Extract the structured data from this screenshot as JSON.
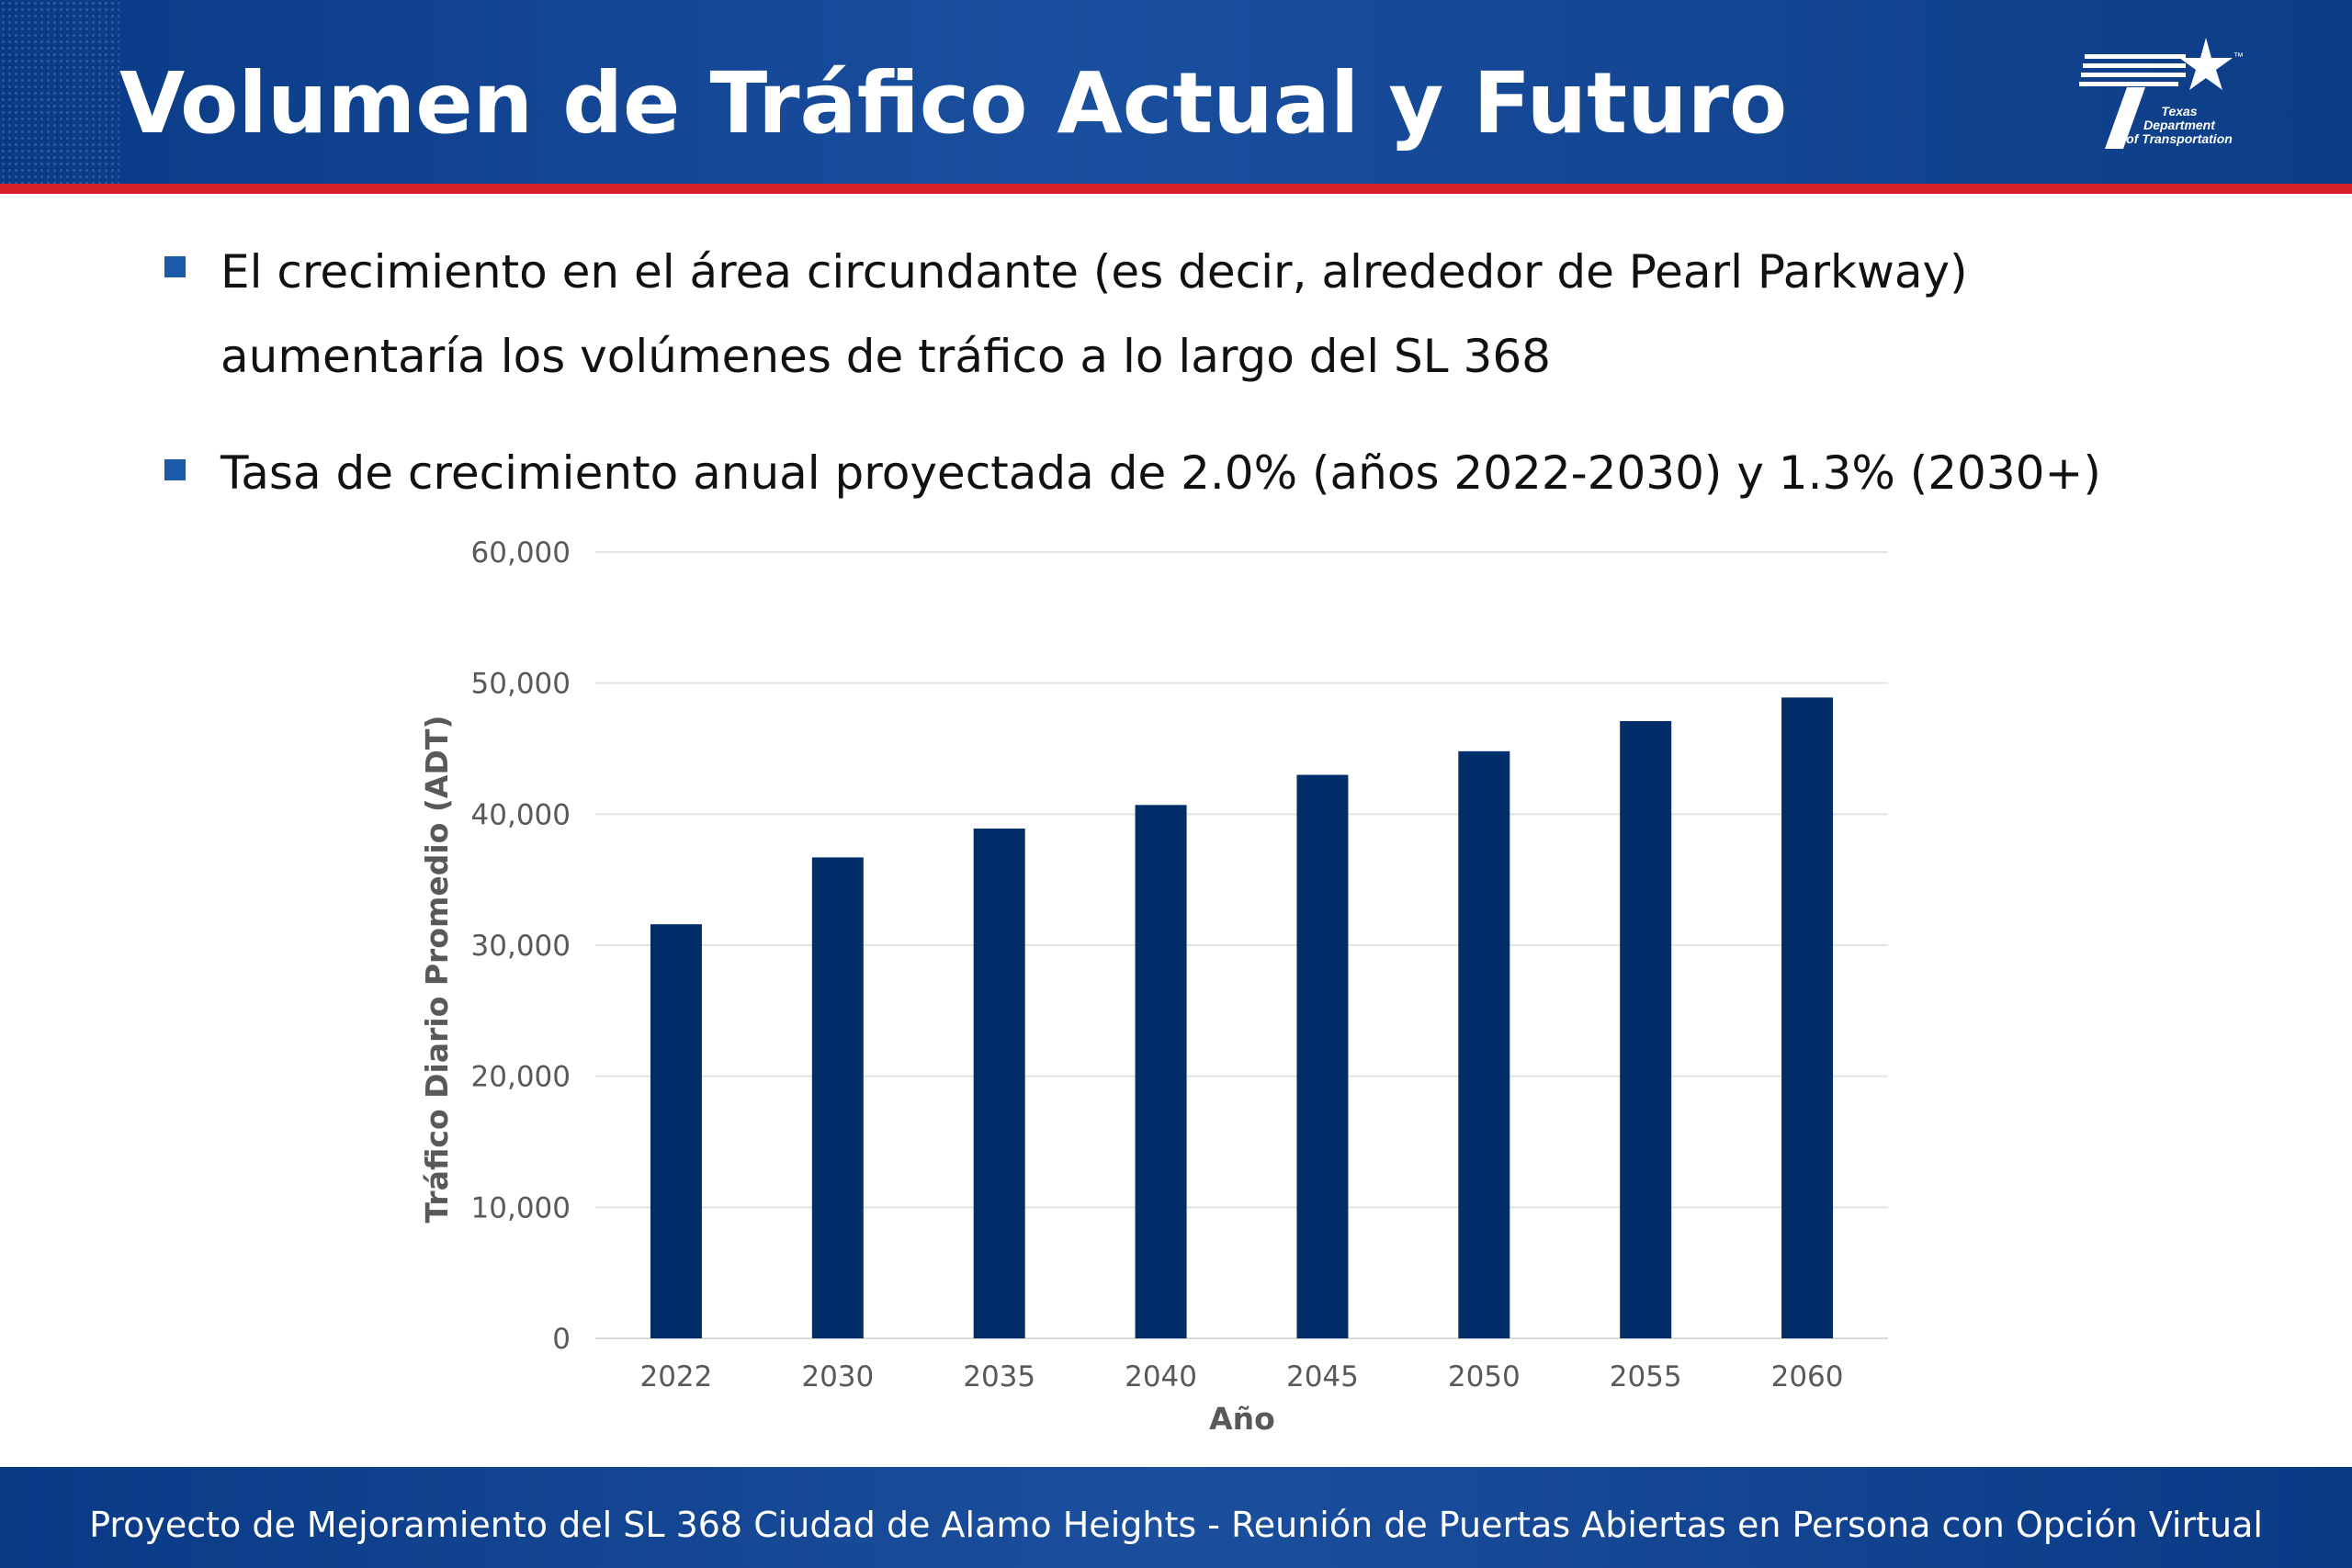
{
  "header": {
    "title": "Volumen de Tráfico Actual y Futuro",
    "logo_text": [
      "Texas",
      "Department",
      "of Transportation"
    ],
    "logo_tm": "™"
  },
  "bullets": [
    {
      "lines": [
        "El crecimiento en el área circundante (es decir, alrededor de Pearl Parkway)",
        "aumentaría los volúmenes de tráfico a lo largo del SL 368"
      ]
    },
    {
      "lines": [
        "Tasa de crecimiento anual proyectada de 2.0% (años 2022-2030) y 1.3% (2030+)"
      ]
    }
  ],
  "chart_data": {
    "type": "bar",
    "categories": [
      "2022",
      "2030",
      "2035",
      "2040",
      "2045",
      "2050",
      "2055",
      "2060"
    ],
    "values": [
      31600,
      36700,
      38900,
      40700,
      43000,
      44800,
      47100,
      48900
    ],
    "xlabel": "Año",
    "ylabel": "Tráfico Diario Promedio (ADT)",
    "ylim": [
      0,
      60000
    ],
    "yticks": [
      0,
      10000,
      20000,
      30000,
      40000,
      50000,
      60000
    ],
    "ytick_labels": [
      "0",
      "10,000",
      "20,000",
      "30,000",
      "40,000",
      "50,000",
      "60,000"
    ],
    "grid": true,
    "legend": "none",
    "bar_color": "#002e6a"
  },
  "footer": {
    "text": "Proyecto de Mejoramiento del SL 368 Ciudad de Alamo Heights - Reunión de Puertas Abiertas en Persona con Opción Virtual"
  },
  "colors": {
    "header_blue": "#0c3d87",
    "accent_red": "#d71f26",
    "bullet_blue": "#1b5aa8",
    "axis_text": "#595959"
  }
}
